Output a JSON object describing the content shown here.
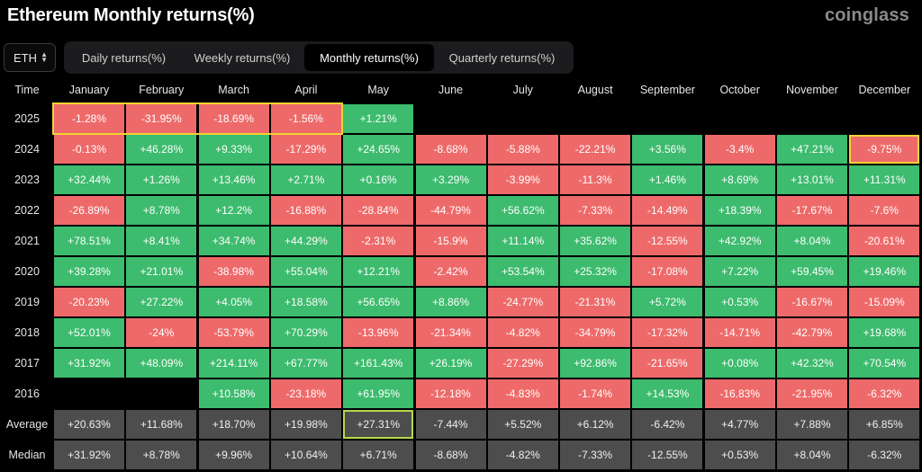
{
  "title": "Ethereum Monthly returns(%)",
  "brand": "coinglass",
  "asset_select": {
    "value": "ETH"
  },
  "tabs": [
    {
      "label": "Daily returns(%)",
      "active": false
    },
    {
      "label": "Weekly returns(%)",
      "active": false
    },
    {
      "label": "Monthly returns(%)",
      "active": true
    },
    {
      "label": "Quarterly returns(%)",
      "active": false
    }
  ],
  "colors": {
    "positive": "#3dbb6e",
    "negative": "#ee6a6a",
    "stat": "#4d4d4d",
    "highlight_yellow": "#f2d335",
    "highlight_green": "#b5d84a"
  },
  "table": {
    "corner_label": "Time",
    "months": [
      "January",
      "February",
      "March",
      "April",
      "May",
      "June",
      "July",
      "August",
      "September",
      "October",
      "November",
      "December"
    ],
    "rows": [
      {
        "label": "2025",
        "type": "year",
        "values": [
          "-1.28%",
          "-31.95%",
          "-18.69%",
          "-1.56%",
          "+1.21%",
          "",
          "",
          "",
          "",
          "",
          "",
          ""
        ]
      },
      {
        "label": "2024",
        "type": "year",
        "values": [
          "-0.13%",
          "+46.28%",
          "+9.33%",
          "-17.29%",
          "+24.65%",
          "-8.68%",
          "-5.88%",
          "-22.21%",
          "+3.56%",
          "-3.4%",
          "+47.21%",
          "-9.75%"
        ]
      },
      {
        "label": "2023",
        "type": "year",
        "values": [
          "+32.44%",
          "+1.26%",
          "+13.46%",
          "+2.71%",
          "+0.16%",
          "+3.29%",
          "-3.99%",
          "-11.3%",
          "+1.46%",
          "+8.69%",
          "+13.01%",
          "+11.31%"
        ]
      },
      {
        "label": "2022",
        "type": "year",
        "values": [
          "-26.89%",
          "+8.78%",
          "+12.2%",
          "-16.88%",
          "-28.84%",
          "-44.79%",
          "+56.62%",
          "-7.33%",
          "-14.49%",
          "+18.39%",
          "-17.67%",
          "-7.6%"
        ]
      },
      {
        "label": "2021",
        "type": "year",
        "values": [
          "+78.51%",
          "+8.41%",
          "+34.74%",
          "+44.29%",
          "-2.31%",
          "-15.9%",
          "+11.14%",
          "+35.62%",
          "-12.55%",
          "+42.92%",
          "+8.04%",
          "-20.61%"
        ]
      },
      {
        "label": "2020",
        "type": "year",
        "values": [
          "+39.28%",
          "+21.01%",
          "-38.98%",
          "+55.04%",
          "+12.21%",
          "-2.42%",
          "+53.54%",
          "+25.32%",
          "-17.08%",
          "+7.22%",
          "+59.45%",
          "+19.46%"
        ]
      },
      {
        "label": "2019",
        "type": "year",
        "values": [
          "-20.23%",
          "+27.22%",
          "+4.05%",
          "+18.58%",
          "+56.65%",
          "+8.86%",
          "-24.77%",
          "-21.31%",
          "+5.72%",
          "+0.53%",
          "-16.67%",
          "-15.09%"
        ]
      },
      {
        "label": "2018",
        "type": "year",
        "values": [
          "+52.01%",
          "-24%",
          "-53.79%",
          "+70.29%",
          "-13.96%",
          "-21.34%",
          "-4.82%",
          "-34.79%",
          "-17.32%",
          "-14.71%",
          "-42.79%",
          "+19.68%"
        ]
      },
      {
        "label": "2017",
        "type": "year",
        "values": [
          "+31.92%",
          "+48.09%",
          "+214.11%",
          "+67.77%",
          "+161.43%",
          "+26.19%",
          "-27.29%",
          "+92.86%",
          "-21.65%",
          "+0.08%",
          "+42.32%",
          "+70.54%"
        ]
      },
      {
        "label": "2016",
        "type": "year",
        "values": [
          "",
          "",
          "+10.58%",
          "-23.18%",
          "+61.95%",
          "-12.18%",
          "-4.83%",
          "-1.74%",
          "+14.53%",
          "-16.83%",
          "-21.95%",
          "-6.32%"
        ]
      },
      {
        "label": "Average",
        "type": "stat",
        "values": [
          "+20.63%",
          "+11.68%",
          "+18.70%",
          "+19.98%",
          "+27.31%",
          "-7.44%",
          "+5.52%",
          "+6.12%",
          "-6.42%",
          "+4.77%",
          "+7.88%",
          "+6.85%"
        ]
      },
      {
        "label": "Median",
        "type": "stat",
        "values": [
          "+31.92%",
          "+8.78%",
          "+9.96%",
          "+10.64%",
          "+6.71%",
          "-8.68%",
          "-4.82%",
          "-7.33%",
          "-12.55%",
          "+0.53%",
          "+8.04%",
          "-6.32%"
        ]
      }
    ],
    "highlights": {
      "yellow_band": {
        "row": "2025",
        "months": [
          "January",
          "February",
          "March",
          "April"
        ]
      },
      "yellow_cell": {
        "row": "2024",
        "month": "December"
      },
      "green_cell": {
        "row": "Average",
        "month": "May"
      }
    }
  }
}
